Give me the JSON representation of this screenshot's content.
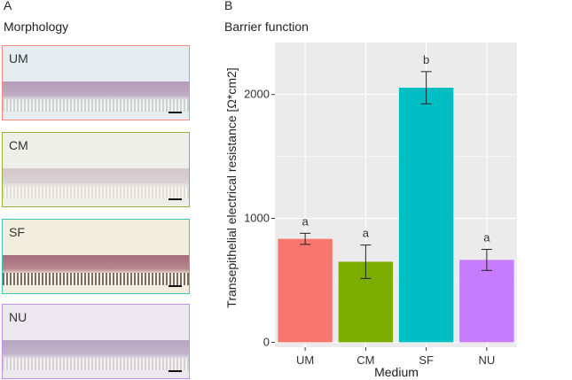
{
  "panel_a": {
    "letter": "A",
    "title": "Morphology",
    "images": [
      {
        "label": "UM",
        "border": "#f28b82",
        "bg": "#e6edf1",
        "tissue": "#b59bb8",
        "base": "#cfd3cb"
      },
      {
        "label": "CM",
        "border": "#8fb33d",
        "bg": "#eeefe9",
        "tissue": "#d3c8cd",
        "base": "#e0ddd5"
      },
      {
        "label": "SF",
        "border": "#3cc6b9",
        "bg": "#f2eede",
        "tissue": "#a86c7c",
        "base": "#7d6a63"
      },
      {
        "label": "NU",
        "border": "#c48ee6",
        "bg": "#ebe8ef",
        "tissue": "#b7a6c2",
        "base": "#d4d2cd"
      }
    ]
  },
  "panel_b": {
    "letter": "B",
    "title": "Barrier function"
  },
  "chart_data": {
    "type": "bar",
    "categories": [
      "UM",
      "CM",
      "SF",
      "NU"
    ],
    "values": [
      835,
      650,
      2055,
      665
    ],
    "errors": [
      45,
      135,
      130,
      85
    ],
    "significance": [
      "a",
      "a",
      "b",
      "a"
    ],
    "colors": [
      "#f8766d",
      "#7cae00",
      "#00bfc4",
      "#c77cff"
    ],
    "xlabel": "Medium",
    "ylabel": "Transepithelial electrical resistance  [Ω*cm2]",
    "ylim": [
      -40,
      2420
    ],
    "yticks": [
      0,
      1000,
      2000
    ],
    "ytick_labels": [
      "0",
      "1000",
      "2000"
    ],
    "grid": true,
    "panel_background": "#ebebeb"
  }
}
